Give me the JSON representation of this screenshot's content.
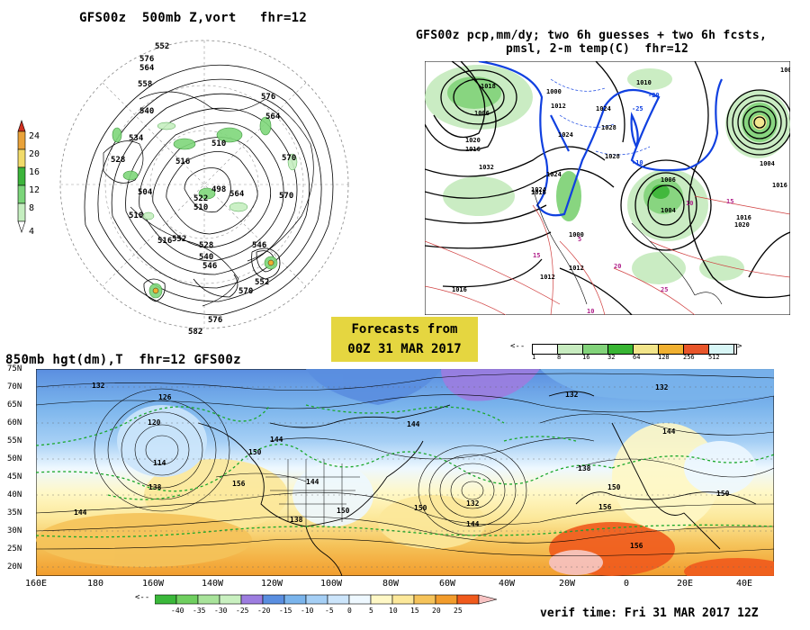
{
  "panel500": {
    "title": "GFS00z  500mb Z,vort   fhr=12",
    "colorbar": {
      "ticks": [
        "24",
        "20",
        "16",
        "12",
        "8",
        "4"
      ],
      "colors": [
        "#d9dc7a",
        "#e7b13d",
        "#f0dc6a",
        "#4fbf4a",
        "#7fd77b",
        "#c6efc0"
      ]
    },
    "labels": [
      "552",
      "576",
      "564",
      "558",
      "540",
      "528",
      "534",
      "516",
      "510",
      "498",
      "504",
      "522",
      "510",
      "510",
      "516",
      "546",
      "570",
      "576",
      "564",
      "570",
      "552",
      "540",
      "528",
      "546",
      "552",
      "564",
      "570",
      "576",
      "582"
    ]
  },
  "panel_pcp": {
    "title_line1": "GFS00z pcp,mm/dy; two 6h guesses + two 6h fcsts,",
    "title_line2": "pmsl, 2-m temp(C)  fhr=12",
    "colorbar": {
      "ticks": [
        "1",
        "8",
        "16",
        "32",
        "64",
        "128",
        "256",
        "512"
      ],
      "colors": [
        "#ffffff",
        "#c8ecc0",
        "#82d37a",
        "#38b533",
        "#f2e58a",
        "#f0b030",
        "#e8552a",
        "#f5c7c0",
        "#f8e8f4"
      ]
    },
    "labels": [
      "1018",
      "1006",
      "1000",
      "1012",
      "1024",
      "1024",
      "1028",
      "1010",
      "1020",
      "1032",
      "1016",
      "1016",
      "1024",
      "1006",
      "1004",
      "1004",
      "1000",
      "1008",
      "1012",
      "1012",
      "1016",
      "1020",
      "1016",
      "1028",
      "1024",
      "1016",
      "-20",
      "-25",
      "-10",
      "10",
      "5",
      "15",
      "20",
      "25",
      "10",
      "15"
    ]
  },
  "forecast_box": {
    "line1": "Forecasts from",
    "line2": "00Z 31 MAR 2017"
  },
  "panel850": {
    "title": "850mb hgt(dm),T  fhr=12 GFS00z",
    "lat_labels": [
      "75N",
      "70N",
      "65N",
      "60N",
      "55N",
      "50N",
      "45N",
      "40N",
      "35N",
      "30N",
      "25N",
      "20N"
    ],
    "lon_labels": [
      "160E",
      "180",
      "160W",
      "140W",
      "120W",
      "100W",
      "80W",
      "60W",
      "40W",
      "20W",
      "0",
      "20E",
      "40E"
    ],
    "contour_labels": [
      "132",
      "126",
      "120",
      "114",
      "138",
      "144",
      "150",
      "156",
      "144",
      "144",
      "138",
      "150",
      "144",
      "132",
      "132",
      "144",
      "138",
      "150",
      "156",
      "150",
      "156",
      "132",
      "144",
      "150"
    ],
    "temp_colorbar": {
      "ticks": [
        "-40",
        "-35",
        "-30",
        "-25",
        "-20",
        "-15",
        "-10",
        "-5",
        "0",
        "5",
        "10",
        "15",
        "20",
        "25"
      ],
      "colors": [
        "#3ab83a",
        "#6fcf5f",
        "#a8e39a",
        "#c9f0c0",
        "#9d7de0",
        "#5a8ee0",
        "#7ab4ec",
        "#a5cff5",
        "#cce5fb",
        "#eef8ff",
        "#fff8c6",
        "#fce89a",
        "#f5c35a",
        "#f29c2c",
        "#f05a1c",
        "#f7c2c2"
      ]
    },
    "verif": "verif time: Fri 31 MAR 2017 12Z"
  }
}
